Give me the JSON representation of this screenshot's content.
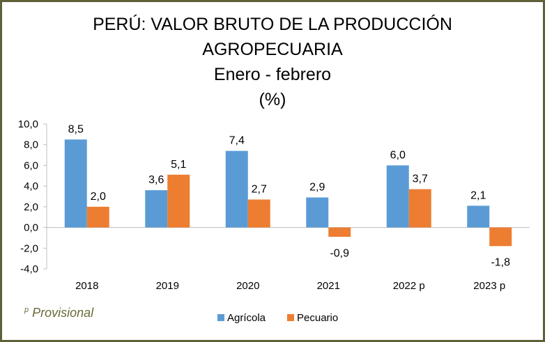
{
  "chart_data": {
    "type": "bar",
    "title_lines": [
      "PERÚ: VALOR BRUTO DE LA PRODUCCIÓN",
      "AGROPECUARIA",
      "Enero - febrero",
      "(%)"
    ],
    "categories": [
      "2018",
      "2019",
      "2020",
      "2021",
      "2022 p",
      "2023 p"
    ],
    "series": [
      {
        "name": "Agrícola",
        "color": "#5b9bd5",
        "values": [
          8.5,
          3.6,
          7.4,
          2.9,
          6.0,
          2.1
        ],
        "labels": [
          "8,5",
          "3,6",
          "7,4",
          "2,9",
          "6,0",
          "2,1"
        ]
      },
      {
        "name": "Pecuario",
        "color": "#ed7d31",
        "values": [
          2.0,
          5.1,
          2.7,
          -0.9,
          3.7,
          -1.8
        ],
        "labels": [
          "2,0",
          "5,1",
          "2,7",
          "-0,9",
          "3,7",
          "-1,8"
        ]
      }
    ],
    "ylim": [
      -4,
      10
    ],
    "yticks": [
      10,
      8,
      6,
      4,
      2,
      0,
      -2,
      -4
    ],
    "ytick_labels": [
      "10,0",
      "8,0",
      "6,0",
      "4,0",
      "2,0",
      "0,0",
      "-2,0",
      "-4,0"
    ],
    "xlabel": "",
    "ylabel": "",
    "grid": false,
    "legend_position": "bottom",
    "footnote_sup": "p",
    "footnote": "Provisional"
  }
}
